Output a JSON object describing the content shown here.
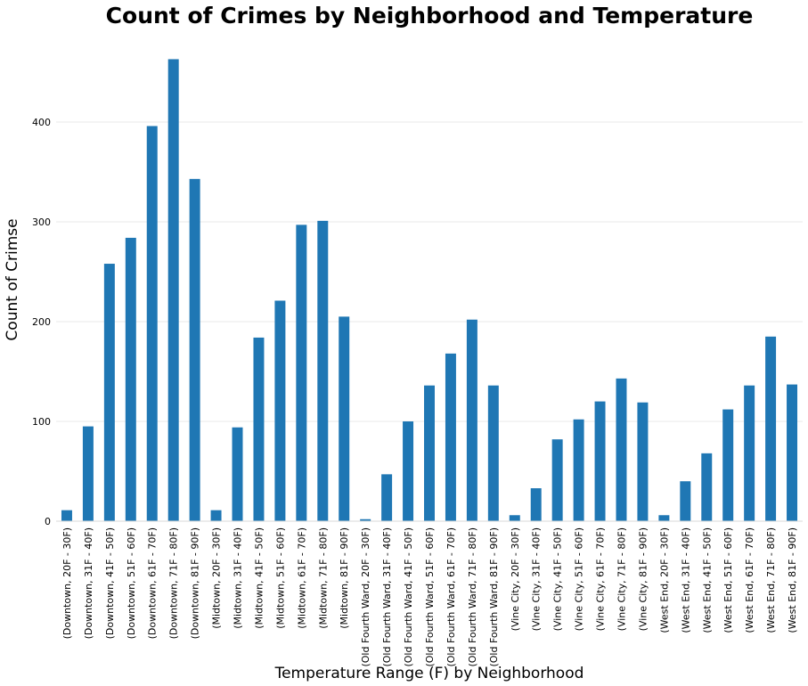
{
  "chart_data": {
    "type": "bar",
    "title": "Count of Crimes by Neighborhood and Temperature",
    "xlabel": "Temperature Range (F) by Neighborhood",
    "ylabel": "Count of Crimse",
    "ylim": [
      0,
      470
    ],
    "yticks": [
      0,
      100,
      200,
      300,
      400
    ],
    "grid": true,
    "legend": "none",
    "bar_color": "#1f77b4",
    "categories": [
      "(Downtown, 20F - 30F)",
      "(Downtown, 31F - 40F)",
      "(Downtown, 41F - 50F)",
      "(Downtown, 51F - 60F)",
      "(Downtown, 61F - 70F)",
      "(Downtown, 71F - 80F)",
      "(Downtown, 81F - 90F)",
      "(Midtown, 20F - 30F)",
      "(Midtown, 31F - 40F)",
      "(Midtown, 41F - 50F)",
      "(Midtown, 51F - 60F)",
      "(Midtown, 61F - 70F)",
      "(Midtown, 71F - 80F)",
      "(Midtown, 81F - 90F)",
      "(Old Fourth Ward, 20F - 30F)",
      "(Old Fourth Ward, 31F - 40F)",
      "(Old Fourth Ward, 41F - 50F)",
      "(Old Fourth Ward, 51F - 60F)",
      "(Old Fourth Ward, 61F - 70F)",
      "(Old Fourth Ward, 71F - 80F)",
      "(Old Fourth Ward, 81F - 90F)",
      "(Vine City, 20F - 30F)",
      "(Vine City, 31F - 40F)",
      "(Vine City, 41F - 50F)",
      "(Vine City, 51F - 60F)",
      "(Vine City, 61F - 70F)",
      "(Vine City, 71F - 80F)",
      "(Vine City, 81F - 90F)",
      "(West End, 20F - 30F)",
      "(West End, 31F - 40F)",
      "(West End, 41F - 50F)",
      "(West End, 51F - 60F)",
      "(West End, 61F - 70F)",
      "(West End, 71F - 80F)",
      "(West End, 81F - 90F)"
    ],
    "values": [
      11,
      95,
      258,
      284,
      396,
      463,
      343,
      11,
      94,
      184,
      221,
      297,
      301,
      205,
      2,
      47,
      100,
      136,
      168,
      202,
      136,
      6,
      33,
      82,
      102,
      120,
      143,
      119,
      6,
      40,
      68,
      112,
      136,
      185,
      137
    ]
  }
}
